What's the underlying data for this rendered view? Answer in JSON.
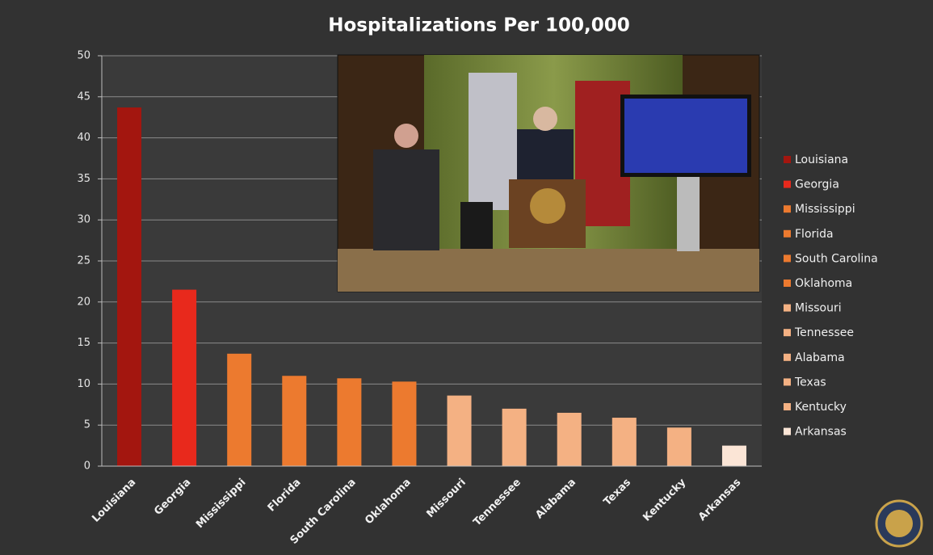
{
  "chart_data": {
    "type": "bar",
    "title": "Hospitalizations Per 100,000",
    "categories": [
      "Louisiana",
      "Georgia",
      "Mississippi",
      "Florida",
      "South Carolina",
      "Oklahoma",
      "Missouri",
      "Tennessee",
      "Alabama",
      "Texas",
      "Kentucky",
      "Arkansas"
    ],
    "values": [
      43.7,
      21.5,
      13.7,
      11.0,
      10.7,
      10.3,
      8.6,
      7.0,
      6.5,
      5.9,
      4.7,
      2.5
    ],
    "colors": [
      "#a3160f",
      "#e8291c",
      "#ec7a2f",
      "#ec7a2f",
      "#ec7a2f",
      "#ec7a2f",
      "#f4b183",
      "#f4b183",
      "#f4b183",
      "#f4b183",
      "#f4b183",
      "#fbe5d6"
    ],
    "ylim": [
      0,
      50
    ],
    "yticks": [
      0,
      5,
      10,
      15,
      20,
      25,
      30,
      35,
      40,
      45,
      50
    ],
    "grid": true,
    "legend": "right"
  }
}
